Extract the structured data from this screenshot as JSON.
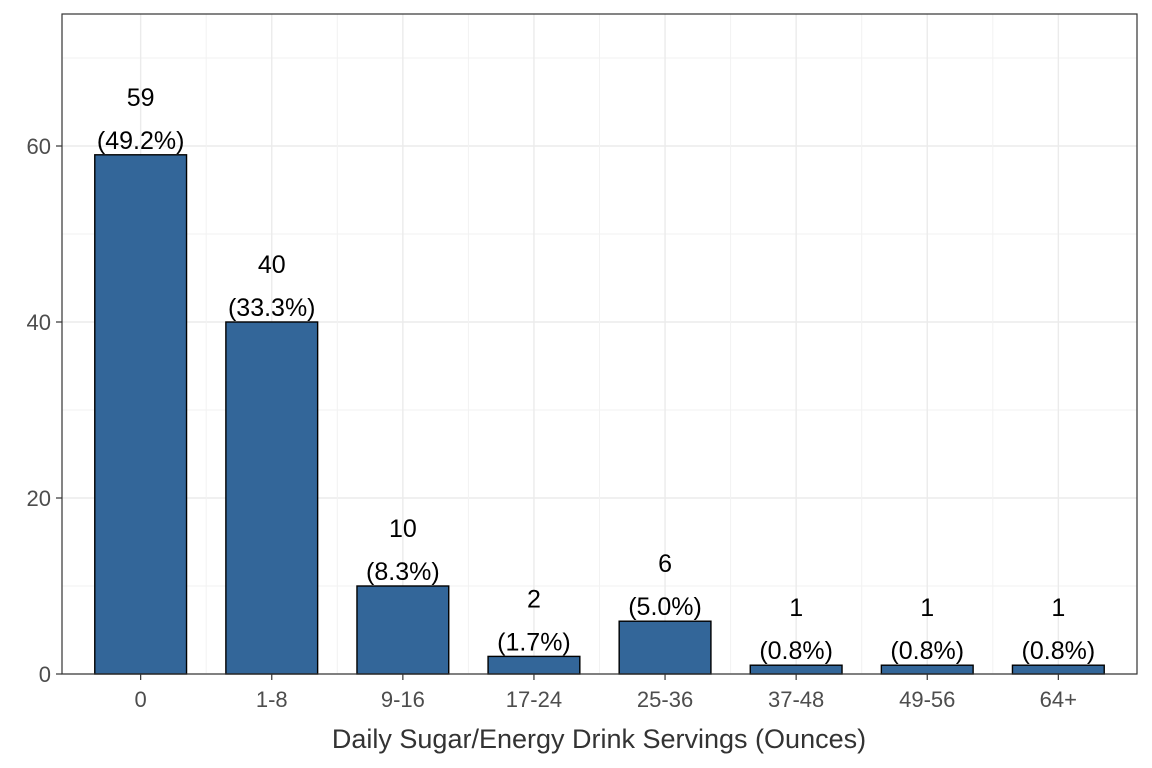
{
  "chart_data": {
    "type": "bar",
    "categories": [
      "0",
      "1-8",
      "9-16",
      "17-24",
      "25-36",
      "37-48",
      "49-56",
      "64+"
    ],
    "values": [
      59,
      40,
      10,
      2,
      6,
      1,
      1,
      1
    ],
    "percent_labels": [
      "(49.2%)",
      "(33.3%)",
      "(8.3%)",
      "(1.7%)",
      "(5.0%)",
      "(0.8%)",
      "(0.8%)",
      "(0.8%)"
    ],
    "xlabel": "Daily Sugar/Energy Drink Servings (Ounces)",
    "ylabel": "",
    "ylim": [
      0,
      75
    ],
    "yticks": [
      0,
      20,
      40,
      60
    ],
    "grid": true,
    "bar_color": "#336699",
    "bar_outline": "#000000"
  }
}
